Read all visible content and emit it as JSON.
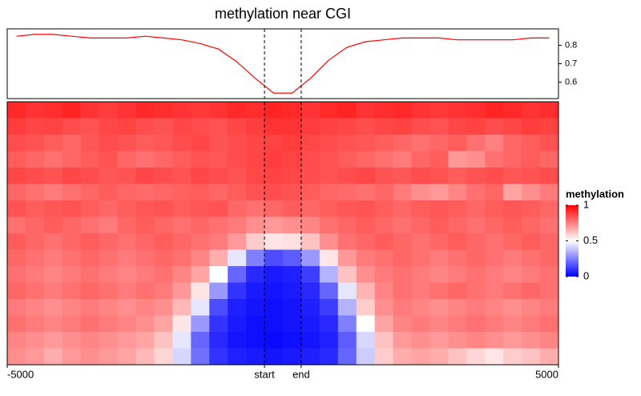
{
  "chart_data": {
    "type": "heatmap",
    "title": "methylation near CGI",
    "xticks": [
      {
        "value": 0,
        "label": "-5000"
      },
      {
        "value": 14,
        "label": "start"
      },
      {
        "value": 16,
        "label": "end"
      },
      {
        "value": 30,
        "label": "5000"
      }
    ],
    "profile": {
      "color": "#ff0000",
      "values": [
        0.85,
        0.86,
        0.86,
        0.85,
        0.84,
        0.84,
        0.84,
        0.85,
        0.84,
        0.83,
        0.81,
        0.78,
        0.71,
        0.62,
        0.54,
        0.54,
        0.62,
        0.72,
        0.79,
        0.82,
        0.83,
        0.84,
        0.84,
        0.84,
        0.83,
        0.83,
        0.83,
        0.83,
        0.84,
        0.84
      ],
      "ylim": [
        0.51,
        0.89
      ],
      "yticks": [
        0.6,
        0.7,
        0.8
      ]
    },
    "matrix": [
      [
        0.92,
        0.9,
        0.91,
        0.93,
        0.9,
        0.88,
        0.9,
        0.92,
        0.91,
        0.9,
        0.89,
        0.9,
        0.92,
        0.91,
        0.93,
        0.92,
        0.9,
        0.92,
        0.93,
        0.9,
        0.91,
        0.92,
        0.9,
        0.89,
        0.9,
        0.91,
        0.93,
        0.92,
        0.9,
        0.91
      ],
      [
        0.88,
        0.86,
        0.87,
        0.85,
        0.84,
        0.86,
        0.87,
        0.85,
        0.84,
        0.86,
        0.85,
        0.84,
        0.86,
        0.88,
        0.9,
        0.9,
        0.88,
        0.87,
        0.86,
        0.85,
        0.86,
        0.87,
        0.85,
        0.84,
        0.86,
        0.87,
        0.85,
        0.86,
        0.88,
        0.87
      ],
      [
        0.85,
        0.84,
        0.82,
        0.8,
        0.83,
        0.85,
        0.84,
        0.82,
        0.83,
        0.85,
        0.86,
        0.84,
        0.85,
        0.86,
        0.87,
        0.88,
        0.86,
        0.85,
        0.84,
        0.83,
        0.82,
        0.8,
        0.78,
        0.8,
        0.82,
        0.78,
        0.75,
        0.8,
        0.82,
        0.84
      ],
      [
        0.82,
        0.8,
        0.78,
        0.8,
        0.82,
        0.84,
        0.8,
        0.78,
        0.8,
        0.82,
        0.84,
        0.83,
        0.85,
        0.86,
        0.88,
        0.87,
        0.85,
        0.84,
        0.82,
        0.8,
        0.78,
        0.76,
        0.8,
        0.82,
        0.7,
        0.72,
        0.78,
        0.8,
        0.82,
        0.8
      ],
      [
        0.86,
        0.85,
        0.84,
        0.86,
        0.85,
        0.83,
        0.84,
        0.86,
        0.85,
        0.84,
        0.86,
        0.85,
        0.84,
        0.86,
        0.87,
        0.86,
        0.85,
        0.84,
        0.85,
        0.86,
        0.84,
        0.83,
        0.85,
        0.84,
        0.82,
        0.84,
        0.85,
        0.83,
        0.84,
        0.85
      ],
      [
        0.8,
        0.78,
        0.76,
        0.78,
        0.8,
        0.82,
        0.8,
        0.79,
        0.8,
        0.81,
        0.82,
        0.8,
        0.82,
        0.84,
        0.85,
        0.84,
        0.82,
        0.8,
        0.79,
        0.78,
        0.8,
        0.76,
        0.72,
        0.7,
        0.74,
        0.78,
        0.8,
        0.68,
        0.72,
        0.76
      ],
      [
        0.84,
        0.82,
        0.83,
        0.84,
        0.82,
        0.8,
        0.82,
        0.83,
        0.84,
        0.82,
        0.83,
        0.84,
        0.8,
        0.78,
        0.8,
        0.82,
        0.8,
        0.82,
        0.83,
        0.84,
        0.82,
        0.8,
        0.82,
        0.83,
        0.82,
        0.8,
        0.82,
        0.83,
        0.82,
        0.8
      ],
      [
        0.78,
        0.8,
        0.82,
        0.8,
        0.78,
        0.76,
        0.8,
        0.82,
        0.8,
        0.78,
        0.8,
        0.78,
        0.76,
        0.72,
        0.7,
        0.72,
        0.74,
        0.78,
        0.8,
        0.82,
        0.8,
        0.78,
        0.8,
        0.82,
        0.8,
        0.78,
        0.8,
        0.82,
        0.8,
        0.78
      ],
      [
        0.82,
        0.8,
        0.78,
        0.8,
        0.82,
        0.8,
        0.78,
        0.8,
        0.82,
        0.8,
        0.78,
        0.76,
        0.7,
        0.6,
        0.55,
        0.56,
        0.62,
        0.72,
        0.78,
        0.8,
        0.82,
        0.8,
        0.78,
        0.8,
        0.82,
        0.8,
        0.78,
        0.8,
        0.82,
        0.8
      ],
      [
        0.8,
        0.78,
        0.76,
        0.78,
        0.8,
        0.78,
        0.76,
        0.78,
        0.8,
        0.78,
        0.74,
        0.66,
        0.45,
        0.25,
        0.15,
        0.18,
        0.3,
        0.55,
        0.7,
        0.76,
        0.78,
        0.8,
        0.78,
        0.76,
        0.78,
        0.8,
        0.78,
        0.76,
        0.78,
        0.8
      ],
      [
        0.78,
        0.76,
        0.74,
        0.76,
        0.78,
        0.76,
        0.74,
        0.76,
        0.78,
        0.74,
        0.68,
        0.5,
        0.2,
        0.08,
        0.05,
        0.06,
        0.12,
        0.35,
        0.62,
        0.72,
        0.76,
        0.78,
        0.76,
        0.74,
        0.76,
        0.78,
        0.76,
        0.74,
        0.76,
        0.78
      ],
      [
        0.8,
        0.78,
        0.76,
        0.78,
        0.8,
        0.78,
        0.76,
        0.78,
        0.76,
        0.7,
        0.55,
        0.3,
        0.1,
        0.05,
        0.04,
        0.05,
        0.08,
        0.2,
        0.45,
        0.65,
        0.74,
        0.78,
        0.76,
        0.78,
        0.8,
        0.78,
        0.76,
        0.78,
        0.8,
        0.78
      ],
      [
        0.76,
        0.74,
        0.72,
        0.74,
        0.76,
        0.74,
        0.72,
        0.74,
        0.72,
        0.64,
        0.45,
        0.15,
        0.06,
        0.04,
        0.03,
        0.04,
        0.06,
        0.12,
        0.35,
        0.6,
        0.72,
        0.76,
        0.74,
        0.72,
        0.74,
        0.76,
        0.74,
        0.72,
        0.74,
        0.76
      ],
      [
        0.78,
        0.76,
        0.74,
        0.76,
        0.78,
        0.76,
        0.74,
        0.72,
        0.68,
        0.55,
        0.3,
        0.1,
        0.05,
        0.03,
        0.03,
        0.04,
        0.05,
        0.08,
        0.25,
        0.5,
        0.68,
        0.74,
        0.76,
        0.74,
        0.76,
        0.78,
        0.76,
        0.74,
        0.76,
        0.78
      ],
      [
        0.74,
        0.72,
        0.7,
        0.72,
        0.74,
        0.72,
        0.7,
        0.68,
        0.62,
        0.45,
        0.2,
        0.08,
        0.04,
        0.03,
        0.02,
        0.03,
        0.04,
        0.06,
        0.18,
        0.42,
        0.62,
        0.7,
        0.72,
        0.7,
        0.72,
        0.74,
        0.72,
        0.7,
        0.72,
        0.74
      ],
      [
        0.72,
        0.7,
        0.66,
        0.7,
        0.72,
        0.7,
        0.68,
        0.64,
        0.58,
        0.42,
        0.22,
        0.1,
        0.06,
        0.05,
        0.04,
        0.05,
        0.06,
        0.08,
        0.2,
        0.4,
        0.6,
        0.66,
        0.68,
        0.66,
        0.62,
        0.58,
        0.55,
        0.6,
        0.62,
        0.66
      ]
    ],
    "legend": {
      "title": "methylation",
      "breaks": [
        0,
        0.5,
        1
      ],
      "colors": [
        "#0000ff",
        "#ffffff",
        "#ff0000"
      ]
    }
  }
}
